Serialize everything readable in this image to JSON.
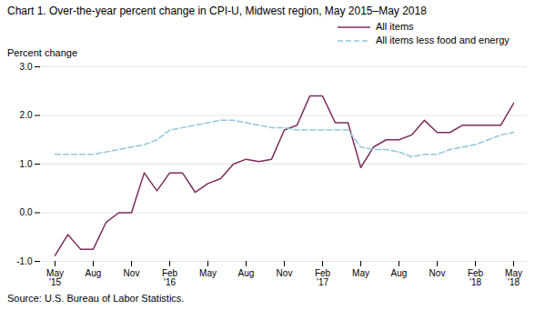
{
  "chart_data": {
    "type": "line",
    "title": "Chart 1. Over-the-year percent change in CPI-U, Midwest region, May 2015–May 2018",
    "y_label": "Percent change",
    "annotations": [
      "Source: U.S. Bureau of Labor Statistics."
    ],
    "categories": [
      "May\n'15",
      null,
      null,
      "Aug",
      null,
      null,
      "Nov",
      null,
      null,
      "Feb\n'16",
      null,
      null,
      "May",
      null,
      null,
      "Aug",
      null,
      null,
      "Nov",
      null,
      null,
      "Feb\n'17",
      null,
      null,
      "May",
      null,
      null,
      "Aug",
      null,
      null,
      "Nov",
      null,
      null,
      "Feb\n'18",
      null,
      null,
      "May\n'18"
    ],
    "series": [
      {
        "name": "All items",
        "color": "#7B2D5E",
        "line_style": "solid",
        "values": [
          -0.88,
          -0.45,
          -0.75,
          -0.75,
          -0.2,
          0.0,
          0.0,
          0.82,
          0.45,
          0.82,
          0.82,
          0.42,
          0.6,
          0.7,
          1.0,
          1.1,
          1.05,
          1.1,
          1.7,
          1.8,
          2.4,
          2.4,
          1.85,
          1.85,
          0.93,
          1.35,
          1.5,
          1.5,
          1.6,
          1.9,
          1.65,
          1.65,
          1.8,
          1.8,
          1.8,
          1.8,
          2.25
        ]
      },
      {
        "name": "All items less food and energy",
        "color": "#92C5DE",
        "line_style": "dashed",
        "values": [
          1.2,
          1.2,
          1.2,
          1.2,
          1.25,
          1.3,
          1.35,
          1.4,
          1.5,
          1.7,
          1.75,
          1.8,
          1.85,
          1.9,
          1.9,
          1.85,
          1.8,
          1.75,
          1.75,
          1.7,
          1.7,
          1.7,
          1.7,
          1.7,
          1.35,
          1.3,
          1.3,
          1.25,
          1.15,
          1.2,
          1.2,
          1.3,
          1.35,
          1.4,
          1.5,
          1.6,
          1.65
        ]
      }
    ],
    "ylim": [
      -1.0,
      3.0
    ],
    "yticks": [
      {
        "value": -1.0,
        "label": "-1.0"
      },
      {
        "value": 0.0,
        "label": "0.0"
      },
      {
        "value": 1.0,
        "label": "1.0"
      },
      {
        "value": 2.0,
        "label": "2.0"
      },
      {
        "value": 3.0,
        "label": "3.0"
      }
    ],
    "grid": true,
    "legend": "upper right"
  }
}
